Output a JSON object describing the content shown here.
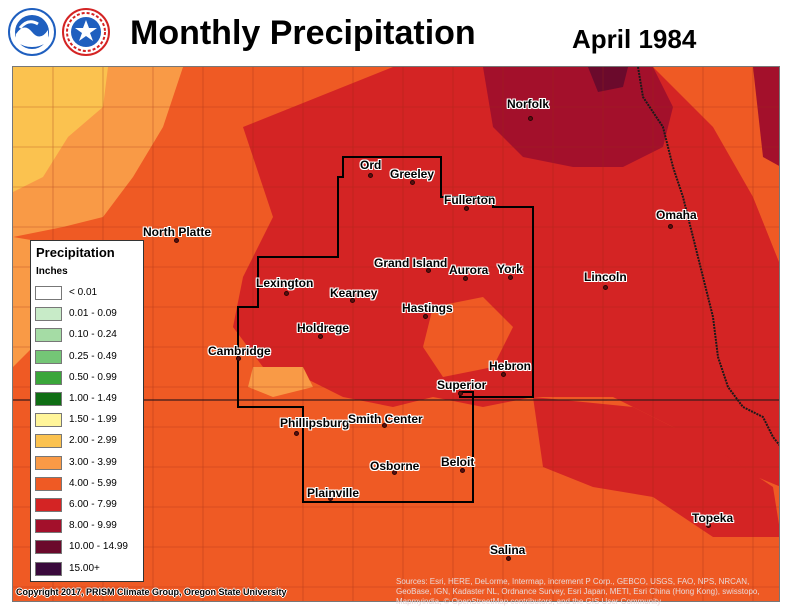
{
  "header": {
    "title": "Monthly Precipitation",
    "subtitle": "April 1984"
  },
  "logos": [
    {
      "name": "noaa-logo",
      "icon": "noaa-seal-icon",
      "color": "#1f5fbf"
    },
    {
      "name": "nws-logo",
      "icon": "nws-seal-icon",
      "color": "#1f5fbf"
    }
  ],
  "legend": {
    "title": "Precipitation",
    "units": "Inches",
    "entries": [
      {
        "label": "< 0.01",
        "color": "#ffffff"
      },
      {
        "label": "0.01 - 0.09",
        "color": "#c8ebc8"
      },
      {
        "label": "0.10 - 0.24",
        "color": "#a5dca5"
      },
      {
        "label": "0.25 - 0.49",
        "color": "#74c676"
      },
      {
        "label": "0.50 - 0.99",
        "color": "#3aa63a"
      },
      {
        "label": "1.00 - 1.49",
        "color": "#0f6e14"
      },
      {
        "label": "1.50 - 1.99",
        "color": "#fff59a"
      },
      {
        "label": "2.00 - 2.99",
        "color": "#fbc24f"
      },
      {
        "label": "3.00 - 3.99",
        "color": "#f99a46"
      },
      {
        "label": "4.00 - 5.99",
        "color": "#ef5a24"
      },
      {
        "label": "6.00 - 7.99",
        "color": "#d42424"
      },
      {
        "label": "8.00 - 9.99",
        "color": "#a3102b"
      },
      {
        "label": "10.00 - 14.99",
        "color": "#6b0a2c"
      },
      {
        "label": "15.00+",
        "color": "#3a0a3c"
      }
    ]
  },
  "cities": [
    {
      "name": "Norfolk"
    },
    {
      "name": "Ord"
    },
    {
      "name": "Greeley"
    },
    {
      "name": "Fullerton"
    },
    {
      "name": "Omaha"
    },
    {
      "name": "North Platte"
    },
    {
      "name": "Grand Island"
    },
    {
      "name": "Aurora"
    },
    {
      "name": "York"
    },
    {
      "name": "Lincoln"
    },
    {
      "name": "Lexington"
    },
    {
      "name": "Kearney"
    },
    {
      "name": "Hastings"
    },
    {
      "name": "Holdrege"
    },
    {
      "name": "Cambridge"
    },
    {
      "name": "Hebron"
    },
    {
      "name": "Superior"
    },
    {
      "name": "Phillipsburg"
    },
    {
      "name": "Smith Center"
    },
    {
      "name": "Beloit"
    },
    {
      "name": "Osborne"
    },
    {
      "name": "Plainville"
    },
    {
      "name": "Topeka"
    },
    {
      "name": "Salina"
    }
  ],
  "credit": "Copyright 2017, PRISM Climate Group, Oregon State University",
  "source": "Sources: Esri, HERE, DeLorme, Intermap, increment P Corp., GEBCO, USGS, FAO, NPS, NRCAN, GeoBase, IGN, Kadaster NL, Ordnance Survey, Esri Japan, METI, Esri China (Hong Kong), swisstopo, Mapmyindia, © OpenStreetMap contributors, and the GIS User Community"
}
